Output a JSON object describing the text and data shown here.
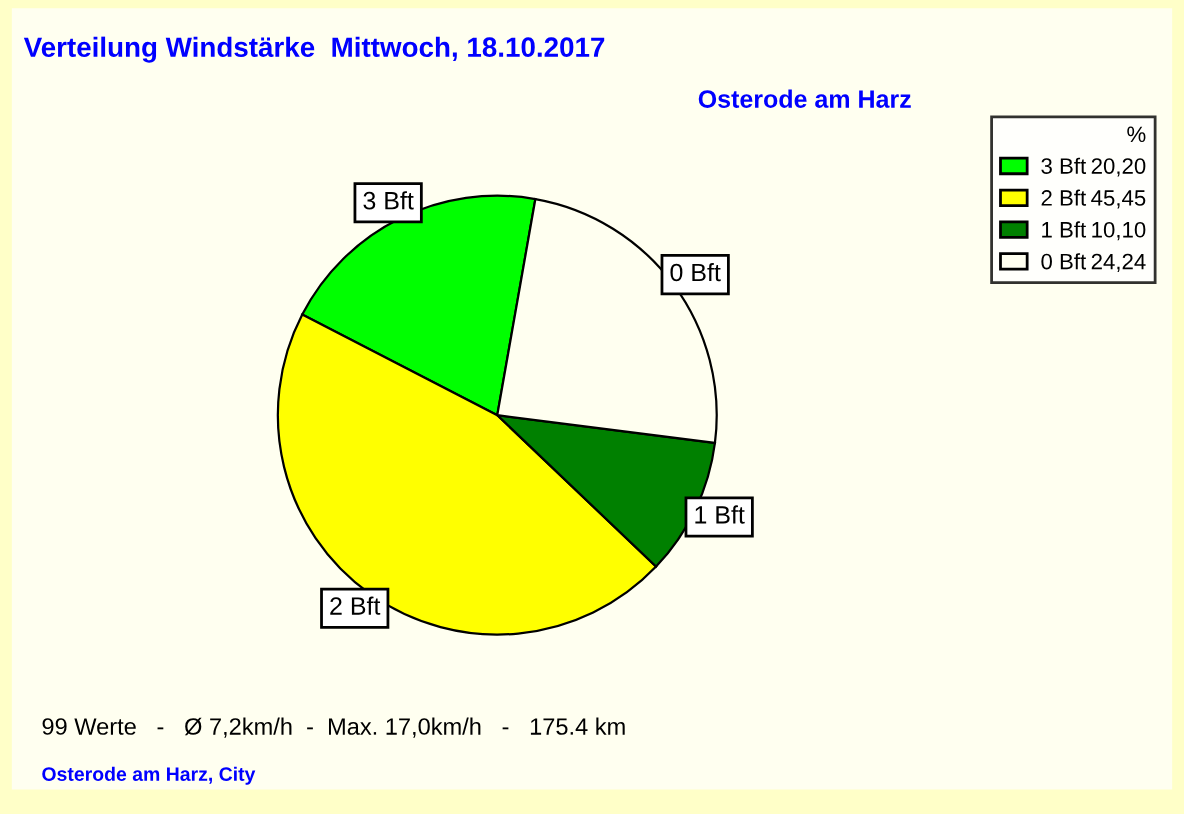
{
  "chart_data": {
    "type": "pie",
    "title": "Verteilung Windstärke  Mittwoch, 18.10.2017",
    "subtitle": "Osterode am Harz",
    "legend_title": "%",
    "categories": [
      "3 Bft",
      "2 Bft",
      "1 Bft",
      "0 Bft"
    ],
    "values": [
      20.2,
      45.45,
      10.1,
      24.24
    ],
    "value_labels": [
      "20,20",
      "45,45",
      "10,10",
      "24,24"
    ],
    "colors": [
      "#00ff00",
      "#ffff00",
      "#008000",
      "#fffff0"
    ],
    "legend": "top right",
    "annotations": [
      "99 Werte   -   Ø 7,2km/h  -  Max. 17,0km/h   -   175.4 km",
      "Osterode am Harz, City"
    ]
  }
}
